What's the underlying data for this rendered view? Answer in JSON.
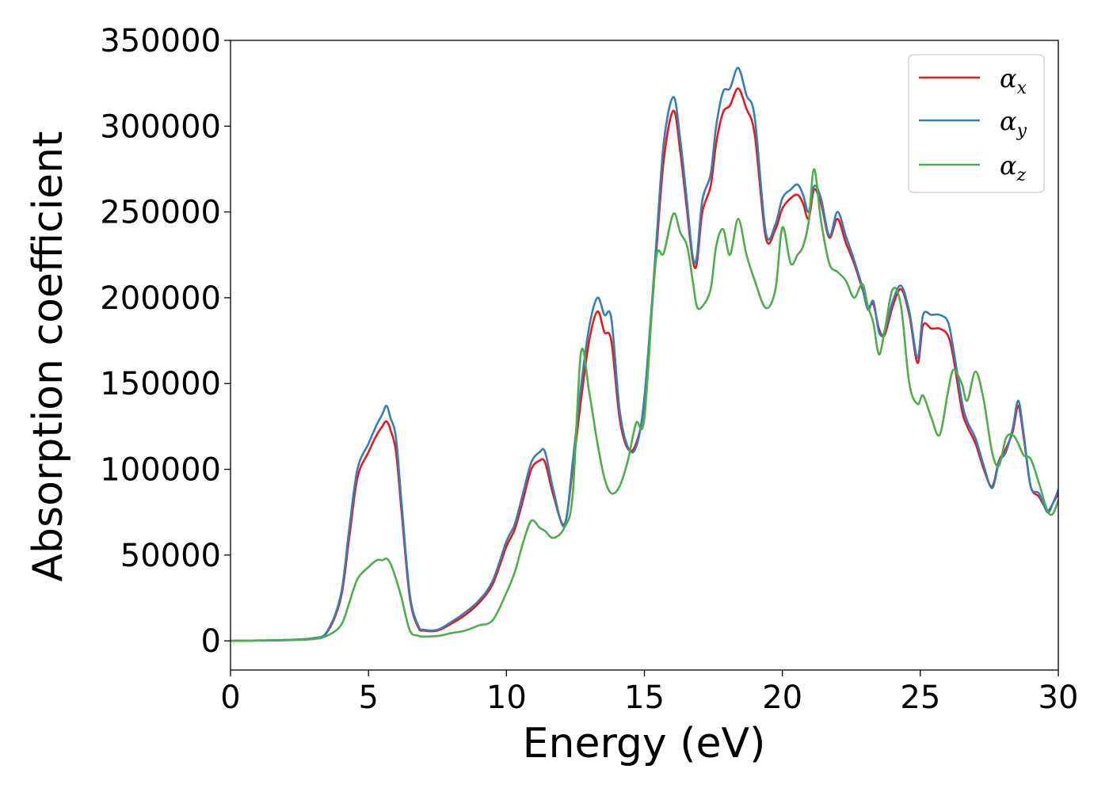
{
  "chart_data": {
    "type": "line",
    "title": "",
    "xlabel": "Energy (eV)",
    "ylabel": "Absorption coefficient",
    "xlim": [
      0,
      30
    ],
    "ylim": [
      -17000,
      350000
    ],
    "xticks": [
      0,
      5,
      10,
      15,
      20,
      25,
      30
    ],
    "yticks": [
      0,
      50000,
      100000,
      150000,
      200000,
      250000,
      300000,
      350000
    ],
    "grid": false,
    "legend_position": "top-right",
    "x": [
      0,
      1,
      2,
      3,
      3.5,
      4,
      4.3,
      4.6,
      5,
      5.3,
      5.5,
      5.65,
      5.8,
      6,
      6.2,
      6.5,
      6.8,
      7,
      7.5,
      8,
      8.5,
      9,
      9.5,
      10,
      10.3,
      10.6,
      10.9,
      11.2,
      11.4,
      11.7,
      12.1,
      12.4,
      12.7,
      13,
      13.3,
      13.55,
      13.8,
      14.1,
      14.4,
      14.7,
      15,
      15.4,
      15.7,
      16.05,
      16.3,
      16.55,
      16.75,
      16.9,
      17.1,
      17.4,
      17.6,
      17.85,
      18.1,
      18.4,
      18.7,
      19,
      19.4,
      19.75,
      20,
      20.3,
      20.55,
      20.75,
      20.95,
      21.15,
      21.4,
      21.7,
      22.0,
      22.3,
      22.6,
      22.9,
      23.1,
      23.3,
      23.5,
      23.7,
      24.0,
      24.3,
      24.6,
      24.9,
      25.1,
      25.4,
      25.7,
      26.0,
      26.2,
      26.5,
      26.7,
      27.0,
      27.3,
      27.6,
      27.85,
      28.1,
      28.35,
      28.55,
      28.75,
      29.0,
      29.3,
      29.6,
      29.8,
      30
    ],
    "series": [
      {
        "name": "α_x",
        "color": "#e41a1c",
        "values": [
          0,
          200,
          500,
          1500,
          5000,
          25000,
          60000,
          95000,
          110000,
          120000,
          125000,
          128000,
          123000,
          110000,
          75000,
          25000,
          8000,
          6000,
          6000,
          10000,
          15000,
          22000,
          33000,
          55000,
          65000,
          82000,
          100000,
          105000,
          104000,
          85000,
          68000,
          100000,
          140000,
          175000,
          192000,
          180000,
          175000,
          130000,
          112000,
          115000,
          140000,
          220000,
          280000,
          309000,
          285000,
          250000,
          222000,
          220000,
          250000,
          265000,
          290000,
          308000,
          312000,
          322000,
          310000,
          295000,
          235000,
          240000,
          252000,
          258000,
          260000,
          255000,
          246000,
          263000,
          255000,
          235000,
          246000,
          232000,
          220000,
          205000,
          195000,
          196000,
          182000,
          178000,
          195000,
          205000,
          190000,
          162000,
          184000,
          182000,
          182000,
          178000,
          165000,
          135000,
          125000,
          115000,
          100000,
          90000,
          105000,
          112000,
          122000,
          137000,
          118000,
          90000,
          84000,
          76000,
          80000,
          86000
        ]
      },
      {
        "name": "α_y",
        "color": "#377eb8",
        "values": [
          0,
          200,
          500,
          1500,
          5500,
          27000,
          65000,
          100000,
          115000,
          126000,
          132000,
          137000,
          130000,
          118000,
          80000,
          27000,
          9000,
          6500,
          6500,
          11000,
          16500,
          23500,
          35000,
          58000,
          68000,
          86000,
          104000,
          110000,
          110000,
          88000,
          67000,
          104000,
          148000,
          183000,
          200000,
          190000,
          188000,
          135000,
          113000,
          113000,
          142000,
          225000,
          290000,
          317000,
          292000,
          255000,
          224000,
          224000,
          257000,
          272000,
          300000,
          320000,
          322000,
          334000,
          318000,
          305000,
          238000,
          243000,
          258000,
          263000,
          266000,
          260000,
          250000,
          265000,
          258000,
          236000,
          250000,
          236000,
          222000,
          206000,
          193000,
          198000,
          180000,
          180000,
          198000,
          207000,
          192000,
          165000,
          190000,
          190000,
          190000,
          186000,
          170000,
          140000,
          128000,
          118000,
          102000,
          89000,
          104000,
          110000,
          124000,
          140000,
          120000,
          90000,
          86000,
          75000,
          80000,
          88000
        ]
      },
      {
        "name": "α_z",
        "color": "#4daf4a",
        "values": [
          0,
          150,
          300,
          1000,
          3000,
          9000,
          22000,
          36000,
          43000,
          47000,
          47000,
          48000,
          45000,
          36000,
          25000,
          6000,
          3000,
          2500,
          2800,
          4500,
          6000,
          9000,
          12000,
          28000,
          40000,
          57000,
          70000,
          66000,
          64000,
          60000,
          66000,
          85000,
          168000,
          145000,
          115000,
          95000,
          86000,
          90000,
          105000,
          127000,
          130000,
          220000,
          226000,
          249000,
          238000,
          230000,
          210000,
          195000,
          195000,
          205000,
          230000,
          240000,
          225000,
          246000,
          225000,
          210000,
          194000,
          205000,
          241000,
          220000,
          225000,
          230000,
          244000,
          275000,
          245000,
          220000,
          215000,
          210000,
          200000,
          208000,
          195000,
          185000,
          167000,
          180000,
          205000,
          195000,
          150000,
          138000,
          143000,
          130000,
          120000,
          145000,
          158000,
          150000,
          140000,
          157000,
          140000,
          110000,
          102000,
          118000,
          120000,
          115000,
          108000,
          106000,
          92000,
          76000,
          74000,
          82000
        ]
      }
    ]
  },
  "legend": {
    "entries": [
      {
        "symbol": "α",
        "sub": "x"
      },
      {
        "symbol": "α",
        "sub": "y"
      },
      {
        "symbol": "α",
        "sub": "z"
      }
    ]
  }
}
